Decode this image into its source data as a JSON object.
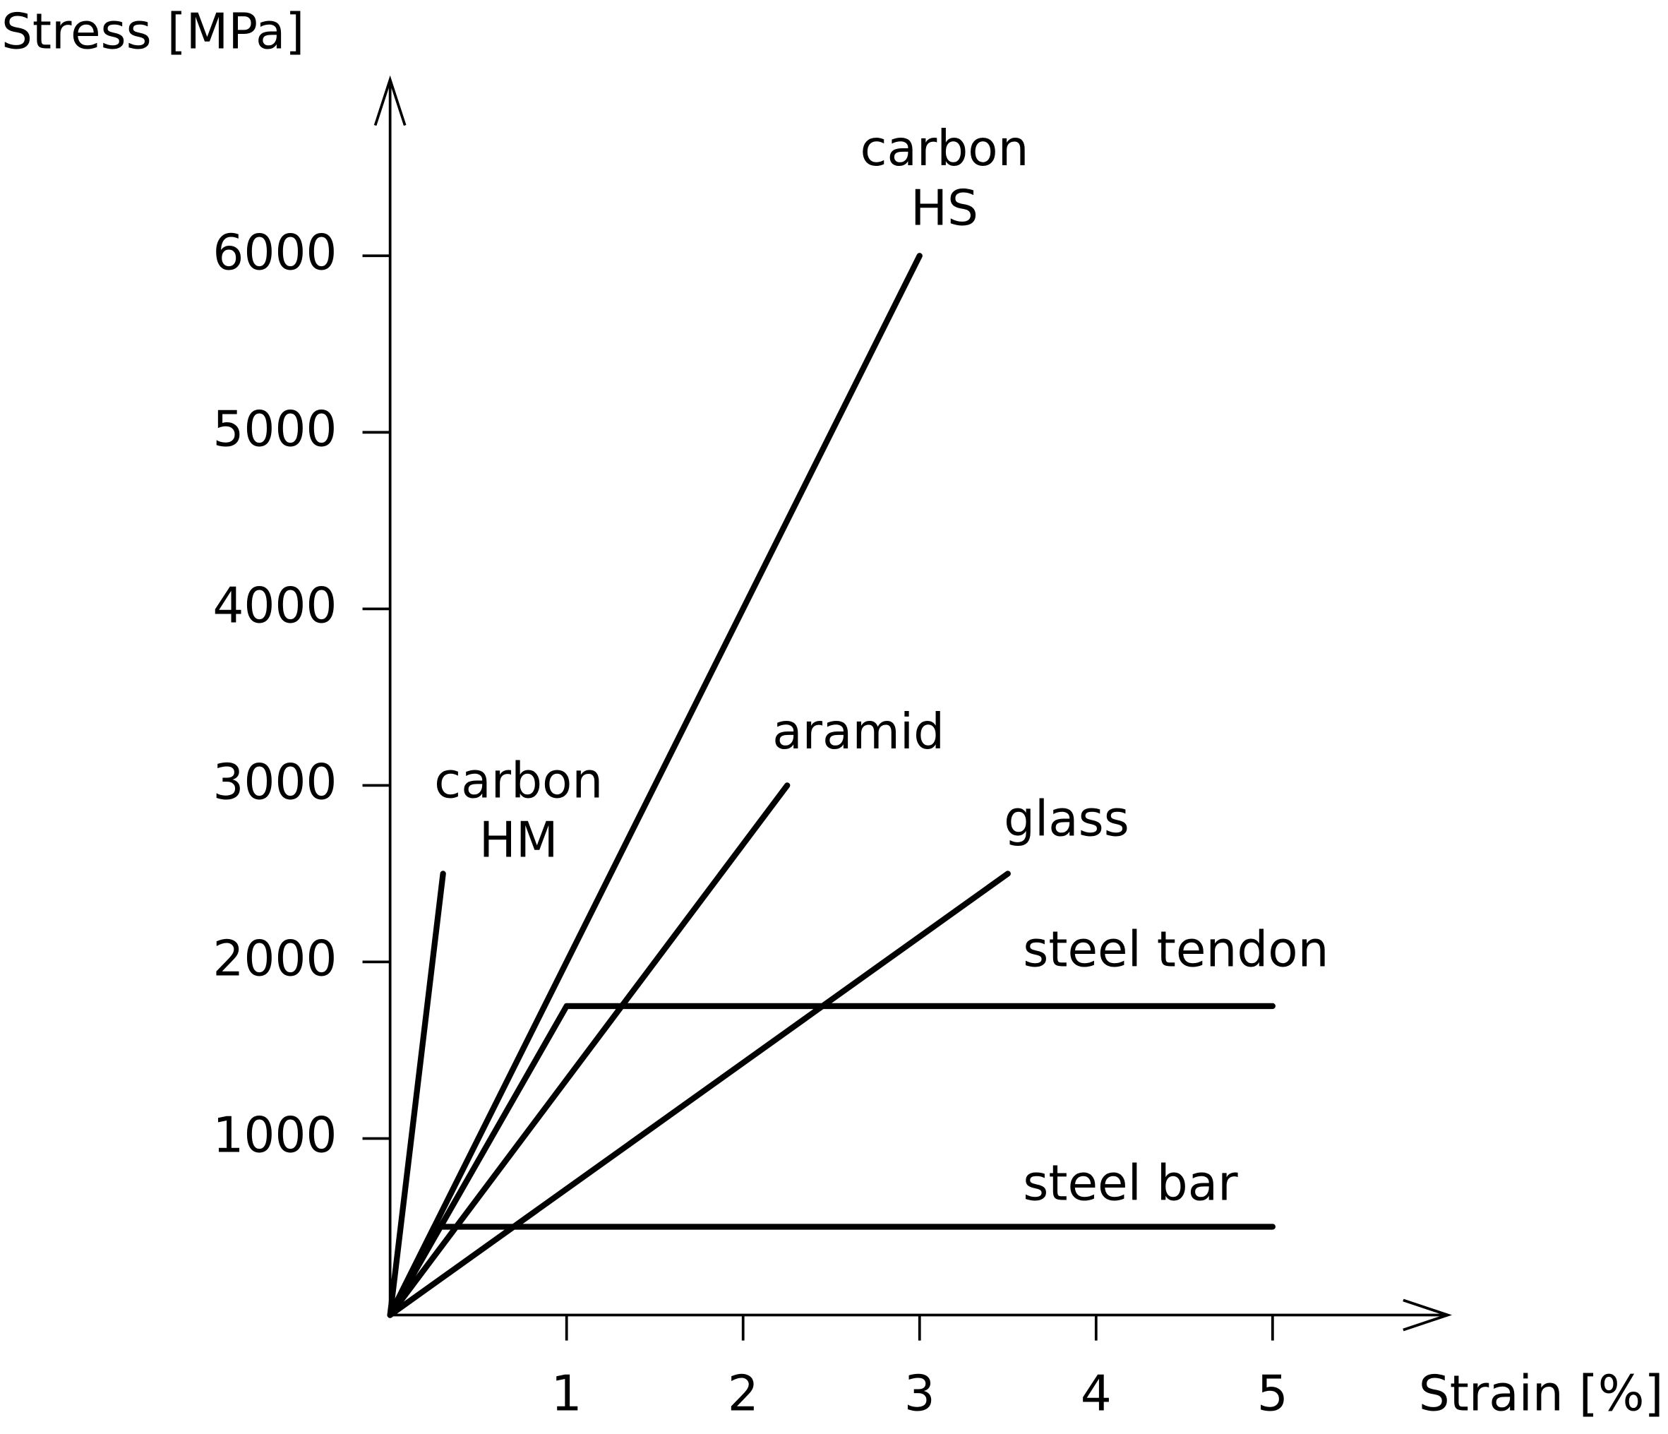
{
  "chart_data": {
    "type": "line",
    "y_label": "Stress [MPa]",
    "x_label": "Strain [%]",
    "xlim": [
      0,
      6
    ],
    "ylim": [
      0,
      7000
    ],
    "xticks": [
      1,
      2,
      3,
      4,
      5
    ],
    "yticks": [
      1000,
      2000,
      3000,
      4000,
      5000,
      6000
    ],
    "series": [
      {
        "name": [
          "carbon",
          "HM"
        ],
        "color": "#000000",
        "x": [
          0,
          0.3
        ],
        "values": [
          0,
          2500
        ]
      },
      {
        "name": [
          "carbon",
          "HS"
        ],
        "color": "#000000",
        "x": [
          0,
          3
        ],
        "values": [
          0,
          6000
        ]
      },
      {
        "name": [
          "aramid"
        ],
        "color": "#000000",
        "x": [
          0,
          2.25
        ],
        "values": [
          0,
          3000
        ]
      },
      {
        "name": [
          "glass"
        ],
        "color": "#000000",
        "x": [
          0,
          3.5
        ],
        "values": [
          0,
          2500
        ]
      },
      {
        "name": [
          "steel tendon"
        ],
        "color": "#000000",
        "x": [
          0,
          1,
          5
        ],
        "values": [
          0,
          1750,
          1750
        ]
      },
      {
        "name": [
          "steel bar"
        ],
        "color": "#000000",
        "x": [
          0,
          0.25,
          5
        ],
        "values": [
          0,
          500,
          500
        ]
      }
    ]
  }
}
